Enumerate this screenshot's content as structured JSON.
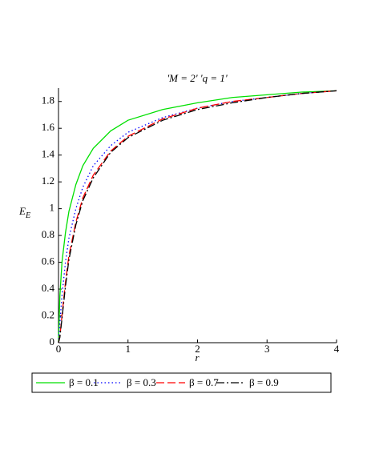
{
  "chart_data": {
    "type": "line",
    "title": "'M = 2' 'q = 1'",
    "x_label": "r",
    "y_label": "E",
    "y_label_sub": "E",
    "x": [
      0,
      0.02,
      0.05,
      0.1,
      0.15,
      0.25,
      0.35,
      0.5,
      0.75,
      1,
      1.5,
      2,
      2.5,
      3,
      3.5,
      4
    ],
    "series": [
      {
        "name": "β = 0.1",
        "color": "#00e000",
        "style": "solid",
        "values": [
          0,
          0.35,
          0.6,
          0.82,
          0.98,
          1.18,
          1.32,
          1.45,
          1.58,
          1.66,
          1.74,
          1.79,
          1.83,
          1.85,
          1.87,
          1.88
        ]
      },
      {
        "name": "β = 0.3",
        "color": "#0000ff",
        "style": "dot",
        "values": [
          0,
          0.15,
          0.35,
          0.6,
          0.78,
          1.0,
          1.16,
          1.32,
          1.47,
          1.57,
          1.68,
          1.75,
          1.8,
          1.83,
          1.86,
          1.88
        ]
      },
      {
        "name": "β = 0.7",
        "color": "#ff0000",
        "style": "dash",
        "values": [
          0,
          0.05,
          0.2,
          0.45,
          0.65,
          0.9,
          1.08,
          1.25,
          1.43,
          1.54,
          1.67,
          1.75,
          1.8,
          1.83,
          1.86,
          1.88
        ]
      },
      {
        "name": "β = 0.9",
        "color": "#000000",
        "style": "dashdot",
        "values": [
          0,
          0.04,
          0.18,
          0.42,
          0.62,
          0.88,
          1.06,
          1.23,
          1.42,
          1.53,
          1.66,
          1.74,
          1.79,
          1.83,
          1.86,
          1.88
        ]
      }
    ],
    "xlim": [
      0,
      4
    ],
    "xticks": [
      0,
      1,
      2,
      3,
      4
    ],
    "ylim": [
      0,
      1.9
    ],
    "yticks": [
      0,
      0.2,
      0.4,
      0.6,
      0.8,
      1,
      1.2,
      1.4,
      1.6,
      1.8
    ],
    "legend": "bottom"
  }
}
